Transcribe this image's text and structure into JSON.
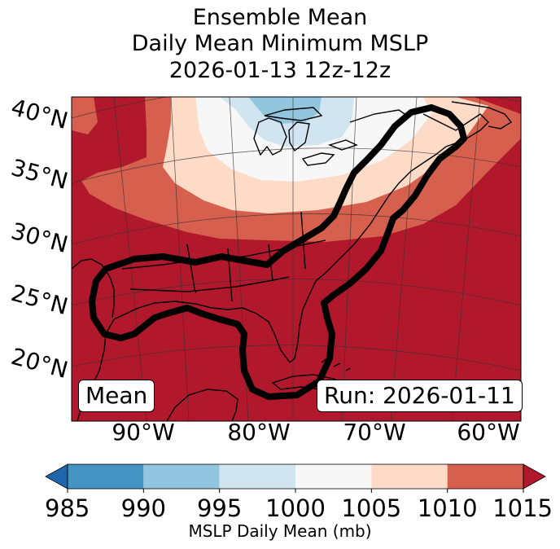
{
  "title": {
    "line1": "Ensemble Mean",
    "line2": "Daily Mean Minimum MSLP",
    "line3": "2026-01-13 12z-12z"
  },
  "map": {
    "lat_labels": [
      "40°N",
      "35°N",
      "30°N",
      "25°N",
      "20°N"
    ],
    "lon_labels": [
      "90°W",
      "80°W",
      "70°W",
      "60°W"
    ],
    "mean_label": "Mean",
    "run_label": "Run: 2026-01-11",
    "shading_colors": {
      "985": "#2166ac",
      "990": "#4393c3",
      "995": "#92c5de",
      "1000": "#d1e5f0",
      "1005": "#f7f7f7",
      "1010": "#fddbc7",
      "1015": "#d6604d",
      "over": "#b2182b"
    }
  },
  "colorbar": {
    "ticks": [
      "985",
      "990",
      "995",
      "1000",
      "1005",
      "1010",
      "1015"
    ],
    "label": "MSLP Daily Mean (mb)",
    "colors": [
      "#4393c3",
      "#92c5de",
      "#d1e5f0",
      "#f7f7f7",
      "#fddbc7",
      "#d6604d"
    ],
    "under_color": "#2166ac",
    "over_color": "#b2182b"
  }
}
